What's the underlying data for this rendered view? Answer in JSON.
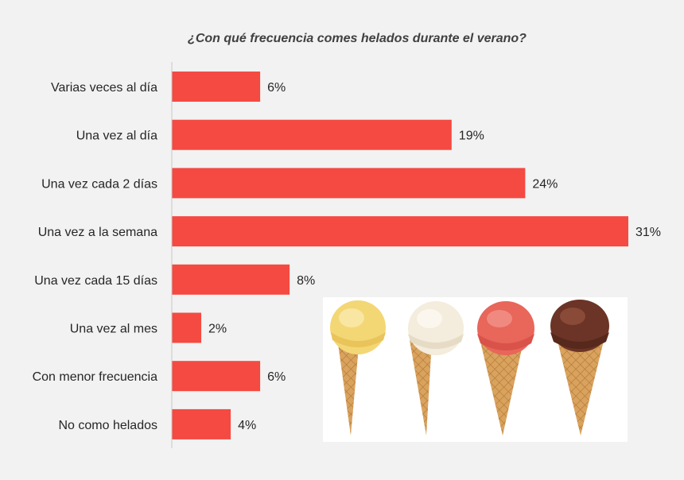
{
  "chart_data": {
    "type": "bar",
    "orientation": "horizontal",
    "title": "¿Con qué frecuencia comes helados durante el verano?",
    "categories": [
      "Varias veces al día",
      "Una vez al día",
      "Una vez cada 2 días",
      "Una vez a la semana",
      "Una vez cada 15 días",
      "Una vez al mes",
      "Con menor frecuencia",
      "No como helados"
    ],
    "values": [
      6,
      19,
      24,
      31,
      8,
      2,
      6,
      4
    ],
    "value_labels": [
      "6%",
      "19%",
      "24%",
      "31%",
      "8%",
      "2%",
      "6%",
      "4%"
    ],
    "unit": "%",
    "xlim": [
      0,
      31
    ],
    "grid": false,
    "legend": "none",
    "bar_color": "#f44a42"
  },
  "image": {
    "description_icon": "ice-cream-cones-photo",
    "flavors_colors": [
      "#f3d774",
      "#f4ecdc",
      "#e8665a",
      "#6b3426"
    ]
  }
}
